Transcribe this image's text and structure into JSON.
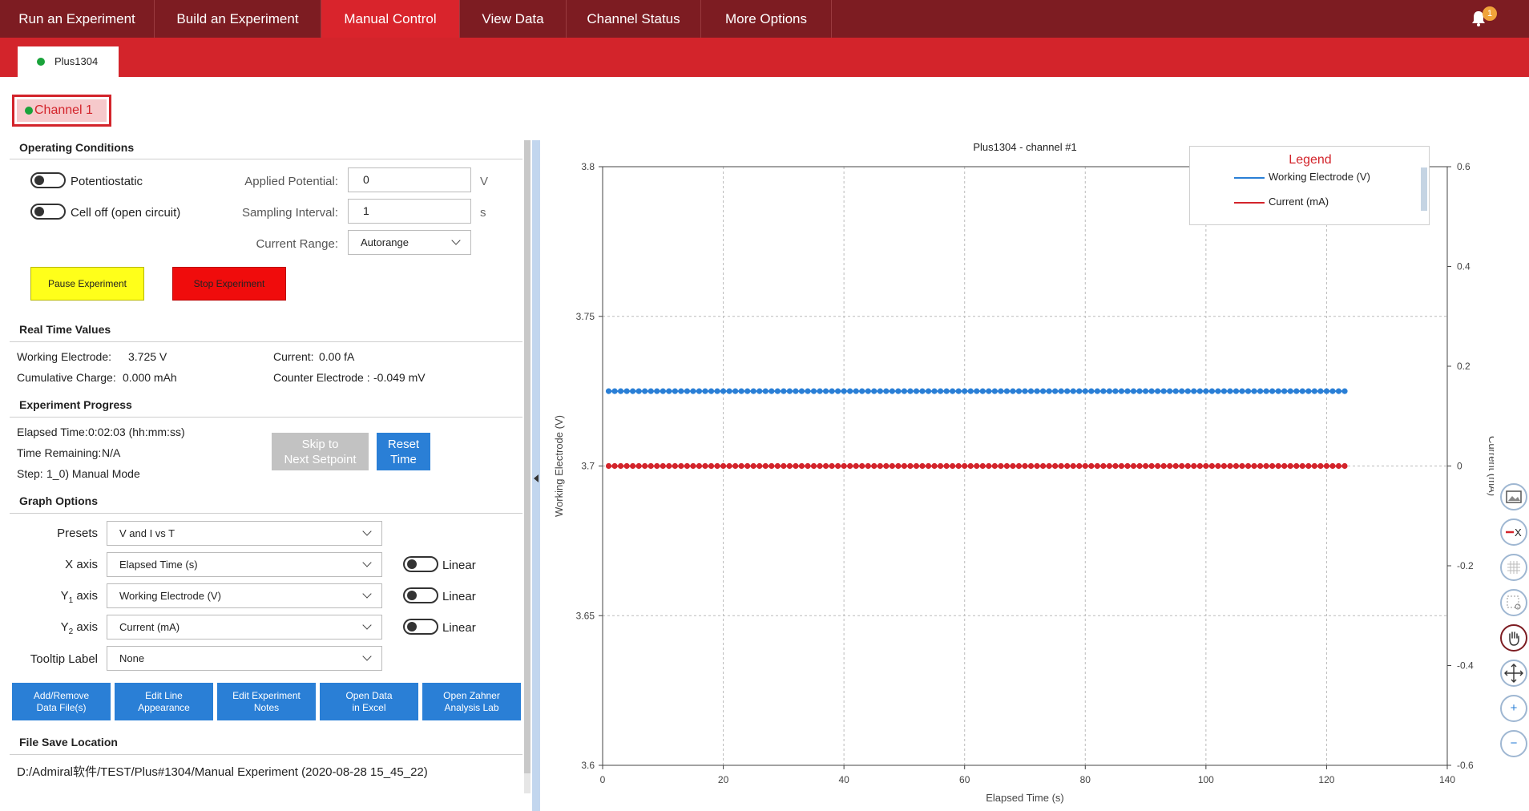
{
  "nav": {
    "tabs": [
      {
        "label": "Run an Experiment"
      },
      {
        "label": "Build an Experiment"
      },
      {
        "label": "Manual Control"
      },
      {
        "label": "View Data"
      },
      {
        "label": "Channel Status"
      },
      {
        "label": "More Options"
      }
    ],
    "active_tab": "Manual Control",
    "notification_count": "1"
  },
  "device_tab": {
    "label": "Plus1304",
    "status_color": "#1aa33b"
  },
  "channel_button": {
    "label": "Channel 1"
  },
  "operating_conditions": {
    "title": "Operating Conditions",
    "potentiostatic_label": "Potentiostatic",
    "cell_off_label": "Cell off (open circuit)",
    "applied_potential_label": "Applied Potential:",
    "applied_potential_value": "0",
    "applied_potential_unit": "V",
    "sampling_interval_label": "Sampling Interval:",
    "sampling_interval_value": "1",
    "sampling_interval_unit": "s",
    "current_range_label": "Current Range:",
    "current_range_value": "Autorange",
    "pause_label": "Pause Experiment",
    "stop_label": "Stop Experiment"
  },
  "real_time": {
    "title": "Real Time Values",
    "we_label": "Working Electrode:",
    "we_value": "3.725 V",
    "charge_label": "Cumulative Charge:",
    "charge_value": "0.000 mAh",
    "current_label": "Current:",
    "current_value": "0.00 fA",
    "ce_label": "Counter Electrode :",
    "ce_value": "-0.049 mV"
  },
  "progress": {
    "title": "Experiment Progress",
    "elapsed_label": "Elapsed Time:",
    "elapsed_value": "0:02:03 (hh:mm:ss)",
    "remaining_label": "Time Remaining:",
    "remaining_value": "N/A",
    "step_label": "Step:",
    "step_value": "1_0) Manual Mode",
    "skip_line1": "Skip to",
    "skip_line2": "Next Setpoint",
    "reset_line1": "Reset",
    "reset_line2": "Time"
  },
  "graph_options": {
    "title": "Graph Options",
    "presets_label": "Presets",
    "presets_value": "V and I vs T",
    "x_label": "X axis",
    "x_value": "Elapsed Time (s)",
    "x_scale": "Linear",
    "y1_label_main": "Y",
    "y1_label_sub": "1",
    "y1_label_tail": " axis",
    "y1_value": "Working Electrode (V)",
    "y1_scale": "Linear",
    "y2_label_main": "Y",
    "y2_label_sub": "2",
    "y2_label_tail": " axis",
    "y2_value": "Current (mA)",
    "y2_scale": "Linear",
    "tooltip_label": "Tooltip Label",
    "tooltip_value": "None"
  },
  "actions": [
    {
      "line1": "Add/Remove",
      "line2": "Data File(s)"
    },
    {
      "line1": "Edit Line",
      "line2": "Appearance"
    },
    {
      "line1": "Edit Experiment",
      "line2": "Notes"
    },
    {
      "line1": "Open Data",
      "line2": "in Excel"
    },
    {
      "line1": "Open Zahner",
      "line2": "Analysis Lab"
    }
  ],
  "file_save": {
    "title": "File Save Location",
    "path": "D:/Admiral软件/TEST/Plus#1304/Manual Experiment (2020-08-28 15_45_22)"
  },
  "legend": {
    "title": "Legend",
    "items": [
      "Working Electrode (V)",
      "Current (mA)"
    ]
  },
  "colors": {
    "we": "#2a7fd6",
    "current": "#d3242b",
    "accent": "#d3242b",
    "nav": "#7d1c22"
  },
  "tools": [
    "image-export-icon",
    "remove-x-icon",
    "grid-icon",
    "zoom-box-icon",
    "pan-hand-icon",
    "move-arrows-icon",
    "zoom-in-icon",
    "zoom-out-icon"
  ],
  "chart_data": {
    "type": "line",
    "title": "Plus1304 - channel #1",
    "xlabel": "Elapsed Time (s)",
    "ylabel": "Working Electrode (V)",
    "y2label": "Current (mA)",
    "xlim": [
      0,
      140
    ],
    "ylim": [
      3.6,
      3.8
    ],
    "y2lim": [
      -0.6,
      0.6
    ],
    "xticks": [
      0,
      20,
      40,
      60,
      80,
      100,
      120,
      140
    ],
    "yticks": [
      3.6,
      3.65,
      3.7,
      3.75,
      3.8
    ],
    "y2ticks": [
      -0.6,
      -0.4,
      -0.2,
      0,
      0.2,
      0.4,
      0.6
    ],
    "grid": true,
    "legend": "top-right",
    "series": [
      {
        "name": "Working Electrode (V)",
        "axis": "y1",
        "x_start": 1,
        "x_end": 123,
        "x_step": 1,
        "value": 3.725
      },
      {
        "name": "Current (mA)",
        "axis": "y2",
        "x_start": 1,
        "x_end": 123,
        "x_step": 1,
        "value": 0
      }
    ]
  }
}
